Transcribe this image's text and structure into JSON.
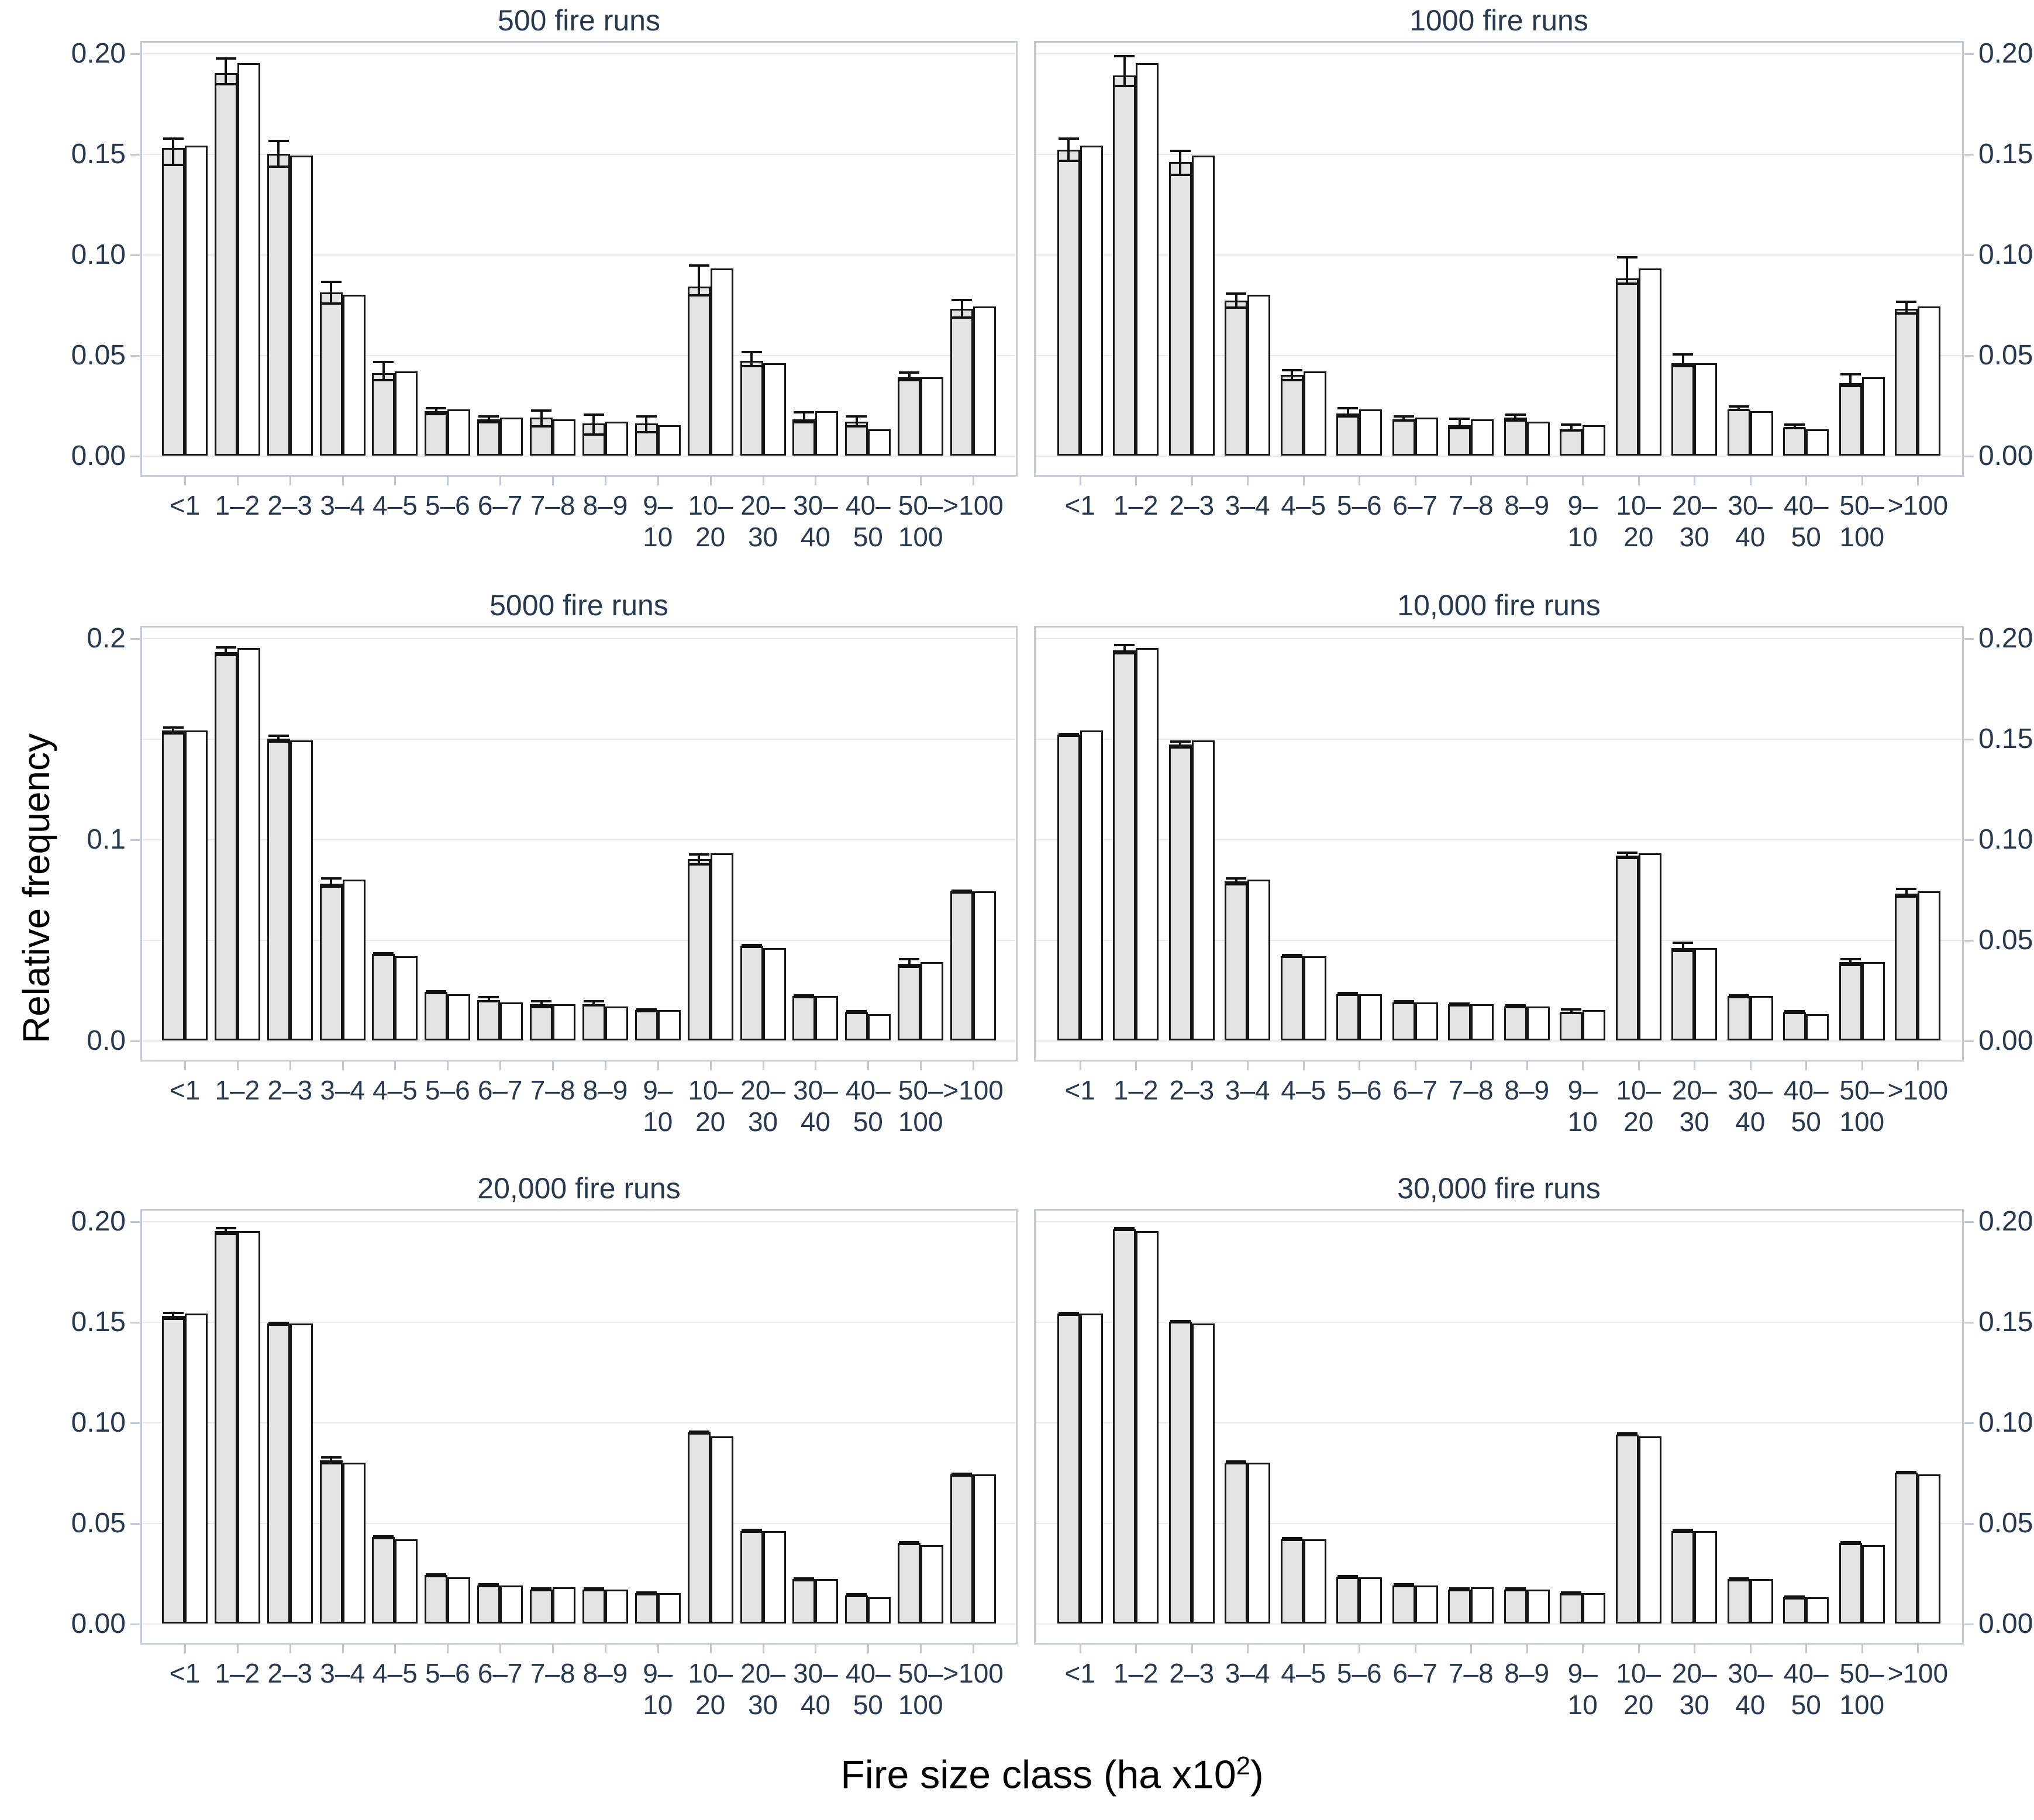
{
  "figure": {
    "ylabel": "Relative frequency",
    "xlabel_prefix": "Fire size class (ha x10",
    "xlabel_sup": "2",
    "xlabel_suffix": ")"
  },
  "colors": {
    "axis_text": "#26394F",
    "black_text": "#000000",
    "bar_fill": "#e4e4e4",
    "bar_stroke": "#161616",
    "gridline": "#e9e9e9",
    "panel_border": "#c2c9d3"
  },
  "chart_data": {
    "type": "bar",
    "note_series_meaning": [
      "simulated mean with error bars (gray)",
      "observed (white)"
    ],
    "categories": [
      [
        "<1"
      ],
      [
        "1–2"
      ],
      [
        "2–3"
      ],
      [
        "3–4"
      ],
      [
        "4–5"
      ],
      [
        "5–6"
      ],
      [
        "6–7"
      ],
      [
        "7–8"
      ],
      [
        "8–9"
      ],
      [
        "9–",
        "10"
      ],
      [
        "10–",
        "20"
      ],
      [
        "20–",
        "30"
      ],
      [
        "30–",
        "40"
      ],
      [
        "40–",
        "50"
      ],
      [
        "50–",
        "100"
      ],
      [
        ">100"
      ]
    ],
    "ylim": [
      0,
      0.207
    ],
    "grid_values": [
      0,
      0.05,
      0.1,
      0.15,
      0.2
    ],
    "observed": [
      0.154,
      0.195,
      0.149,
      0.08,
      0.042,
      0.023,
      0.019,
      0.018,
      0.017,
      0.015,
      0.093,
      0.046,
      0.022,
      0.013,
      0.039,
      0.074
    ],
    "panels": [
      {
        "title": "500 fire runs",
        "axis_side": "left",
        "ytick_labels": [
          "0.20",
          "0.15",
          "0.10",
          "0.05",
          "0.00"
        ],
        "ytick_values": [
          0.2,
          0.15,
          0.1,
          0.05,
          0.0
        ],
        "simulated": [
          0.153,
          0.19,
          0.15,
          0.081,
          0.041,
          0.022,
          0.018,
          0.019,
          0.016,
          0.016,
          0.084,
          0.047,
          0.018,
          0.017,
          0.039,
          0.073
        ],
        "err_down": [
          0.009,
          0.006,
          0.007,
          0.006,
          0.004,
          0.002,
          0.002,
          0.005,
          0.006,
          0.005,
          0.005,
          0.003,
          0.002,
          0.003,
          0.002,
          0.005
        ],
        "err_up": [
          0.005,
          0.008,
          0.007,
          0.006,
          0.006,
          0.002,
          0.002,
          0.004,
          0.005,
          0.004,
          0.011,
          0.005,
          0.004,
          0.003,
          0.003,
          0.005
        ]
      },
      {
        "title": "1000 fire runs",
        "axis_side": "right",
        "ytick_labels": [
          "0.20",
          "0.15",
          "0.10",
          "0.05",
          "0.00"
        ],
        "ytick_values": [
          0.2,
          0.15,
          0.1,
          0.05,
          0.0
        ],
        "simulated": [
          0.152,
          0.189,
          0.146,
          0.077,
          0.04,
          0.021,
          0.018,
          0.015,
          0.019,
          0.013,
          0.088,
          0.046,
          0.023,
          0.014,
          0.036,
          0.073
        ],
        "err_down": [
          0.006,
          0.006,
          0.007,
          0.004,
          0.003,
          0.002,
          0.001,
          0.002,
          0.002,
          0.001,
          0.003,
          0.002,
          0.001,
          0.001,
          0.002,
          0.003
        ],
        "err_up": [
          0.006,
          0.01,
          0.006,
          0.004,
          0.003,
          0.003,
          0.002,
          0.004,
          0.002,
          0.003,
          0.011,
          0.005,
          0.002,
          0.002,
          0.005,
          0.004
        ]
      },
      {
        "title": "5000 fire runs",
        "axis_side": "left",
        "ytick_labels": [
          "0.2",
          "0.1",
          "0.0"
        ],
        "ytick_values": [
          0.2,
          0.1,
          0.0
        ],
        "simulated": [
          0.154,
          0.193,
          0.15,
          0.078,
          0.043,
          0.024,
          0.02,
          0.018,
          0.018,
          0.015,
          0.09,
          0.047,
          0.022,
          0.014,
          0.038,
          0.074
        ],
        "err_down": [
          0.002,
          0.002,
          0.002,
          0.002,
          0.001,
          0.001,
          0.001,
          0.002,
          0.001,
          0.001,
          0.003,
          0.001,
          0.001,
          0.001,
          0.002,
          0.001
        ],
        "err_up": [
          0.002,
          0.003,
          0.002,
          0.003,
          0.001,
          0.001,
          0.002,
          0.002,
          0.002,
          0.001,
          0.003,
          0.001,
          0.001,
          0.001,
          0.003,
          0.001
        ]
      },
      {
        "title": "10,000 fire runs",
        "axis_side": "right",
        "ytick_labels": [
          "0.20",
          "0.15",
          "0.10",
          "0.05",
          "0.00"
        ],
        "ytick_values": [
          0.2,
          0.15,
          0.1,
          0.05,
          0.0
        ],
        "simulated": [
          0.152,
          0.194,
          0.147,
          0.079,
          0.042,
          0.023,
          0.019,
          0.018,
          0.017,
          0.014,
          0.092,
          0.046,
          0.022,
          0.014,
          0.039,
          0.073
        ],
        "err_down": [
          0.001,
          0.002,
          0.002,
          0.002,
          0.001,
          0.001,
          0.001,
          0.001,
          0.001,
          0.001,
          0.002,
          0.002,
          0.001,
          0.001,
          0.002,
          0.002
        ],
        "err_up": [
          0.001,
          0.003,
          0.002,
          0.002,
          0.001,
          0.001,
          0.001,
          0.001,
          0.001,
          0.002,
          0.002,
          0.003,
          0.001,
          0.001,
          0.002,
          0.003
        ]
      },
      {
        "title": "20,000 fire runs",
        "axis_side": "left",
        "ytick_labels": [
          "0.20",
          "0.15",
          "0.10",
          "0.05",
          "0.00"
        ],
        "ytick_values": [
          0.2,
          0.15,
          0.1,
          0.05,
          0.0
        ],
        "simulated": [
          0.153,
          0.195,
          0.149,
          0.081,
          0.043,
          0.024,
          0.019,
          0.017,
          0.017,
          0.015,
          0.095,
          0.046,
          0.022,
          0.014,
          0.04,
          0.074
        ],
        "err_down": [
          0.002,
          0.002,
          0.001,
          0.002,
          0.001,
          0.001,
          0.001,
          0.001,
          0.001,
          0.001,
          0.001,
          0.001,
          0.001,
          0.001,
          0.001,
          0.001
        ],
        "err_up": [
          0.002,
          0.002,
          0.001,
          0.002,
          0.001,
          0.001,
          0.001,
          0.001,
          0.001,
          0.001,
          0.001,
          0.001,
          0.001,
          0.001,
          0.001,
          0.001
        ]
      },
      {
        "title": "30,000 fire runs",
        "axis_side": "right",
        "ytick_labels": [
          "0.20",
          "0.15",
          "0.10",
          "0.05",
          "0.00"
        ],
        "ytick_values": [
          0.2,
          0.15,
          0.1,
          0.05,
          0.0
        ],
        "simulated": [
          0.154,
          0.196,
          0.15,
          0.08,
          0.042,
          0.023,
          0.019,
          0.017,
          0.017,
          0.015,
          0.094,
          0.046,
          0.022,
          0.013,
          0.04,
          0.075
        ],
        "err_down": [
          0.001,
          0.001,
          0.001,
          0.001,
          0.001,
          0.001,
          0.001,
          0.001,
          0.001,
          0.001,
          0.001,
          0.001,
          0.001,
          0.001,
          0.001,
          0.001
        ],
        "err_up": [
          0.001,
          0.001,
          0.001,
          0.001,
          0.001,
          0.001,
          0.001,
          0.001,
          0.001,
          0.001,
          0.001,
          0.001,
          0.001,
          0.001,
          0.001,
          0.001
        ]
      }
    ]
  }
}
